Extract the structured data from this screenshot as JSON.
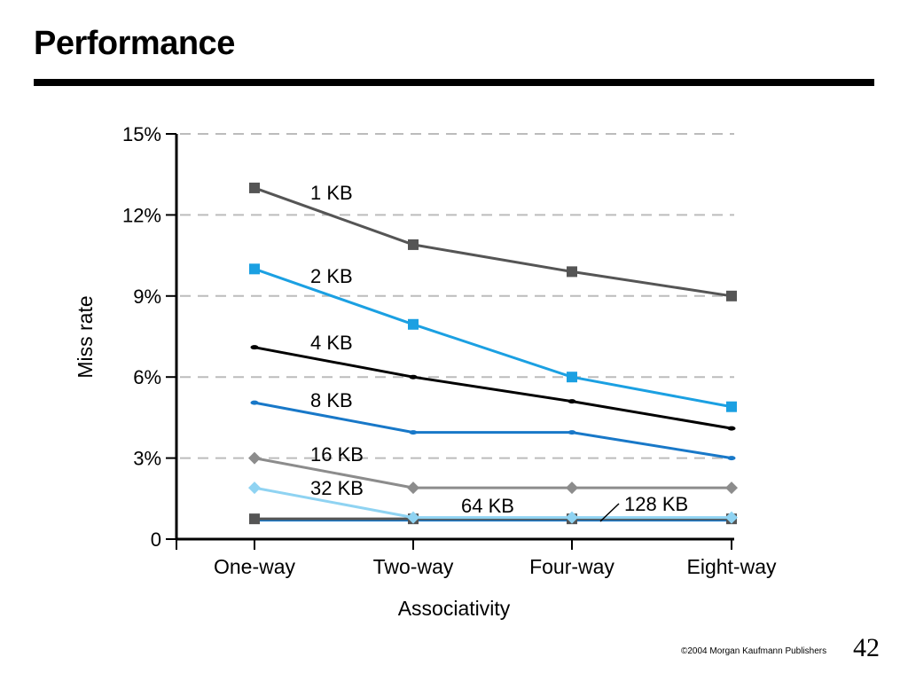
{
  "slide": {
    "title": "Performance",
    "footer": "©2004 Morgan Kaufmann Publishers",
    "page_number": "42"
  },
  "chart_data": {
    "type": "line",
    "categories": [
      "One-way",
      "Two-way",
      "Four-way",
      "Eight-way"
    ],
    "xlabel": "Associativity",
    "ylabel": "Miss rate",
    "ylim": [
      0,
      15
    ],
    "yticks": [
      0,
      3,
      6,
      9,
      12,
      15
    ],
    "ytick_labels": [
      "0",
      "3%",
      "6%",
      "9%",
      "12%",
      "15%"
    ],
    "grid": "horizontal dashed",
    "series": [
      {
        "name": "1 KB",
        "values": [
          13.0,
          10.9,
          9.9,
          9.0
        ],
        "color": "#555555",
        "marker": "square"
      },
      {
        "name": "2 KB",
        "values": [
          10.0,
          7.95,
          6.0,
          4.9
        ],
        "color": "#1ba0e2",
        "marker": "square"
      },
      {
        "name": "4 KB",
        "values": [
          7.1,
          6.0,
          5.1,
          4.1
        ],
        "color": "#000000",
        "marker": "dot"
      },
      {
        "name": "8 KB",
        "values": [
          5.05,
          3.95,
          3.95,
          3.0
        ],
        "color": "#1878c8",
        "marker": "dot"
      },
      {
        "name": "16 KB",
        "values": [
          3.0,
          1.9,
          1.9,
          1.9
        ],
        "color": "#8c8c8c",
        "marker": "diamond"
      },
      {
        "name": "32 KB",
        "values": [
          1.9,
          0.8,
          0.8,
          0.8
        ],
        "color": "#8fd3f2",
        "marker": "diamond"
      },
      {
        "name": "64 KB",
        "values": [
          0.75,
          0.75,
          0.75,
          0.75
        ],
        "color": "#555555",
        "marker": "square"
      },
      {
        "name": "128 KB",
        "values": [
          0.7,
          0.7,
          0.7,
          0.7
        ],
        "color": "#1878c8",
        "marker": "none"
      }
    ]
  }
}
